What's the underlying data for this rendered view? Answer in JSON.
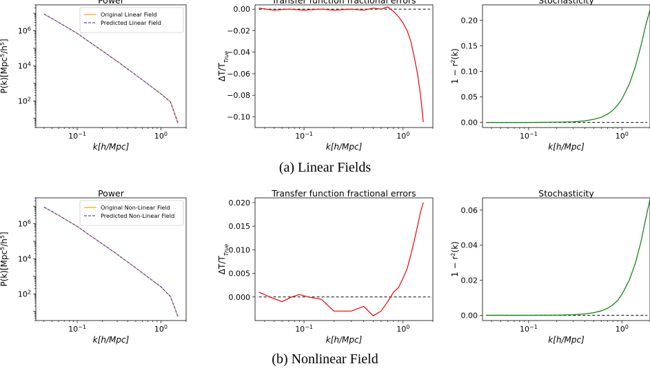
{
  "captions": [
    "(a) Linear Fields",
    "(b) Nonlinear Field"
  ],
  "chart_data": [
    {
      "type": "line",
      "title": "Power",
      "xlabel": "k[h/Mpc]",
      "ylabel": "P(k)[Mpc^5/h^5]",
      "xscale": "log",
      "yscale": "log",
      "xlim": [
        0.032,
        2.0
      ],
      "ylim": [
        3,
        30000000
      ],
      "x_ticks": [
        {
          "v": 0.1,
          "b": "10",
          "e": "−1"
        },
        {
          "v": 1,
          "b": "10",
          "e": "0"
        }
      ],
      "y_ticks": [
        {
          "v": 100,
          "b": "10",
          "e": "2"
        },
        {
          "v": 10000,
          "b": "10",
          "e": "4"
        },
        {
          "v": 1000000,
          "b": "10",
          "e": "6"
        }
      ],
      "legend": "top-right",
      "grid": false,
      "x": [
        0.04,
        0.06,
        0.1,
        0.15,
        0.2,
        0.3,
        0.5,
        0.7,
        1.0,
        1.3,
        1.6
      ],
      "series": [
        {
          "name": "Original Linear Field",
          "color": "#FFA500",
          "style": "solid",
          "values": [
            9000000,
            3000000,
            700000,
            180000,
            70000,
            18000,
            3000,
            900,
            250,
            90,
            6
          ]
        },
        {
          "name": "Predicted Linear Field",
          "color": "#4444dd",
          "style": "dashed",
          "values": [
            9000000,
            3000000,
            700000,
            180000,
            70000,
            18000,
            3000,
            900,
            250,
            85,
            5
          ]
        }
      ]
    },
    {
      "type": "line",
      "title": "Transfer function fractional errors",
      "xlabel": "k[h/Mpc]",
      "ylabel": "ΔT/T_True",
      "xscale": "log",
      "xlim": [
        0.032,
        2.0
      ],
      "ylim": [
        -0.11,
        0.004
      ],
      "x_ticks": [
        {
          "v": 0.1,
          "b": "10",
          "e": "−1"
        },
        {
          "v": 1,
          "b": "10",
          "e": "0"
        }
      ],
      "y_ticks": [
        {
          "v": 0,
          "t": "0.00"
        },
        {
          "v": -0.02,
          "t": "−0.02"
        },
        {
          "v": -0.04,
          "t": "−0.04"
        },
        {
          "v": -0.06,
          "t": "−0.06"
        },
        {
          "v": -0.08,
          "t": "−0.08"
        },
        {
          "v": -0.1,
          "t": "−0.10"
        }
      ],
      "hline": 0,
      "grid": false,
      "x": [
        0.035,
        0.05,
        0.07,
        0.1,
        0.15,
        0.2,
        0.3,
        0.4,
        0.5,
        0.6,
        0.7,
        0.8,
        0.9,
        1.0,
        1.1,
        1.2,
        1.3,
        1.4,
        1.5,
        1.6
      ],
      "series": [
        {
          "color": "#ee0000",
          "style": "solid",
          "values": [
            0.001,
            -0.001,
            0.0,
            -0.001,
            0.0,
            -0.001,
            0.0,
            -0.001,
            0.001,
            0.0,
            0.002,
            -0.002,
            -0.007,
            -0.013,
            -0.02,
            -0.03,
            -0.045,
            -0.06,
            -0.08,
            -0.105
          ]
        }
      ]
    },
    {
      "type": "line",
      "title": "Stochasticity",
      "xlabel": "k[h/Mpc]",
      "ylabel": "1 − r²(k)",
      "xscale": "log",
      "xlim": [
        0.032,
        2.0
      ],
      "ylim": [
        -0.01,
        0.23
      ],
      "x_ticks": [
        {
          "v": 0.1,
          "b": "10",
          "e": "−1"
        },
        {
          "v": 1,
          "b": "10",
          "e": "0"
        }
      ],
      "y_ticks": [
        {
          "v": 0,
          "t": "0.00"
        },
        {
          "v": 0.05,
          "t": "0.05"
        },
        {
          "v": 0.1,
          "t": "0.10"
        },
        {
          "v": 0.15,
          "t": "0.15"
        },
        {
          "v": 0.2,
          "t": "0.20"
        }
      ],
      "hline": 0,
      "grid": false,
      "x": [
        0.035,
        0.1,
        0.2,
        0.3,
        0.4,
        0.5,
        0.6,
        0.7,
        0.8,
        0.9,
        1.0,
        1.2,
        1.4,
        1.6,
        1.8,
        2.0
      ],
      "series": [
        {
          "color": "#008000",
          "style": "solid",
          "values": [
            0.0,
            0.0,
            0.0005,
            0.001,
            0.003,
            0.006,
            0.01,
            0.016,
            0.024,
            0.034,
            0.046,
            0.075,
            0.11,
            0.15,
            0.19,
            0.22
          ]
        }
      ]
    },
    {
      "type": "line",
      "title": "Power",
      "xlabel": "k[h/Mpc]",
      "ylabel": "P(k)[Mpc^5/h^5]",
      "xscale": "log",
      "yscale": "log",
      "xlim": [
        0.032,
        2.0
      ],
      "ylim": [
        3,
        30000000
      ],
      "x_ticks": [
        {
          "v": 0.1,
          "b": "10",
          "e": "−1"
        },
        {
          "v": 1,
          "b": "10",
          "e": "0"
        }
      ],
      "y_ticks": [
        {
          "v": 100,
          "b": "10",
          "e": "2"
        },
        {
          "v": 10000,
          "b": "10",
          "e": "4"
        },
        {
          "v": 1000000,
          "b": "10",
          "e": "6"
        }
      ],
      "legend": "top-right",
      "grid": false,
      "x": [
        0.04,
        0.06,
        0.1,
        0.15,
        0.2,
        0.3,
        0.5,
        0.7,
        1.0,
        1.3,
        1.6
      ],
      "series": [
        {
          "name": "Original Non-Linear Field",
          "color": "#FFA500",
          "style": "solid",
          "values": [
            9000000,
            3000000,
            700000,
            180000,
            70000,
            18000,
            3000,
            900,
            250,
            70,
            5
          ]
        },
        {
          "name": "Predicted Non-Linear Field",
          "color": "#4444dd",
          "style": "dashed",
          "values": [
            9000000,
            3000000,
            700000,
            180000,
            70000,
            18000,
            3000,
            900,
            250,
            70,
            5
          ]
        }
      ]
    },
    {
      "type": "line",
      "title": "Transfer function fractional errors",
      "xlabel": "k[h/Mpc]",
      "ylabel": "ΔT/T_True",
      "xscale": "log",
      "xlim": [
        0.032,
        2.0
      ],
      "ylim": [
        -0.005,
        0.021
      ],
      "x_ticks": [
        {
          "v": 0.1,
          "b": "10",
          "e": "−1"
        },
        {
          "v": 1,
          "b": "10",
          "e": "0"
        }
      ],
      "y_ticks": [
        {
          "v": 0,
          "t": "0.000"
        },
        {
          "v": 0.005,
          "t": "0.005"
        },
        {
          "v": 0.01,
          "t": "0.010"
        },
        {
          "v": 0.015,
          "t": "0.015"
        },
        {
          "v": 0.02,
          "t": "0.020"
        }
      ],
      "hline": 0,
      "grid": false,
      "x": [
        0.035,
        0.045,
        0.06,
        0.075,
        0.09,
        0.11,
        0.15,
        0.2,
        0.3,
        0.4,
        0.5,
        0.6,
        0.7,
        0.8,
        0.9,
        1.0,
        1.1,
        1.2,
        1.3,
        1.4,
        1.5,
        1.6
      ],
      "series": [
        {
          "color": "#ee0000",
          "style": "solid",
          "values": [
            0.001,
            0.0,
            -0.001,
            0.0,
            0.0005,
            0.0,
            -0.0005,
            -0.003,
            -0.003,
            -0.002,
            -0.004,
            -0.003,
            -0.001,
            0.001,
            0.002,
            0.004,
            0.006,
            0.009,
            0.012,
            0.015,
            0.018,
            0.02
          ]
        }
      ]
    },
    {
      "type": "line",
      "title": "Stochasticity",
      "xlabel": "k[h/Mpc]",
      "ylabel": "1 − r²(k)",
      "xscale": "log",
      "xlim": [
        0.032,
        2.0
      ],
      "ylim": [
        -0.003,
        0.067
      ],
      "x_ticks": [
        {
          "v": 0.1,
          "b": "10",
          "e": "−1"
        },
        {
          "v": 1,
          "b": "10",
          "e": "0"
        }
      ],
      "y_ticks": [
        {
          "v": 0,
          "t": "0.00"
        },
        {
          "v": 0.02,
          "t": "0.02"
        },
        {
          "v": 0.04,
          "t": "0.04"
        },
        {
          "v": 0.06,
          "t": "0.06"
        }
      ],
      "hline": 0,
      "grid": false,
      "x": [
        0.035,
        0.1,
        0.2,
        0.3,
        0.4,
        0.5,
        0.6,
        0.7,
        0.8,
        0.9,
        1.0,
        1.2,
        1.4,
        1.6,
        1.8,
        2.0
      ],
      "series": [
        {
          "color": "#008000",
          "style": "solid",
          "values": [
            0.0,
            0.0,
            0.0001,
            0.0003,
            0.0008,
            0.0015,
            0.0025,
            0.004,
            0.006,
            0.0085,
            0.012,
            0.02,
            0.03,
            0.042,
            0.055,
            0.066
          ]
        }
      ]
    }
  ]
}
